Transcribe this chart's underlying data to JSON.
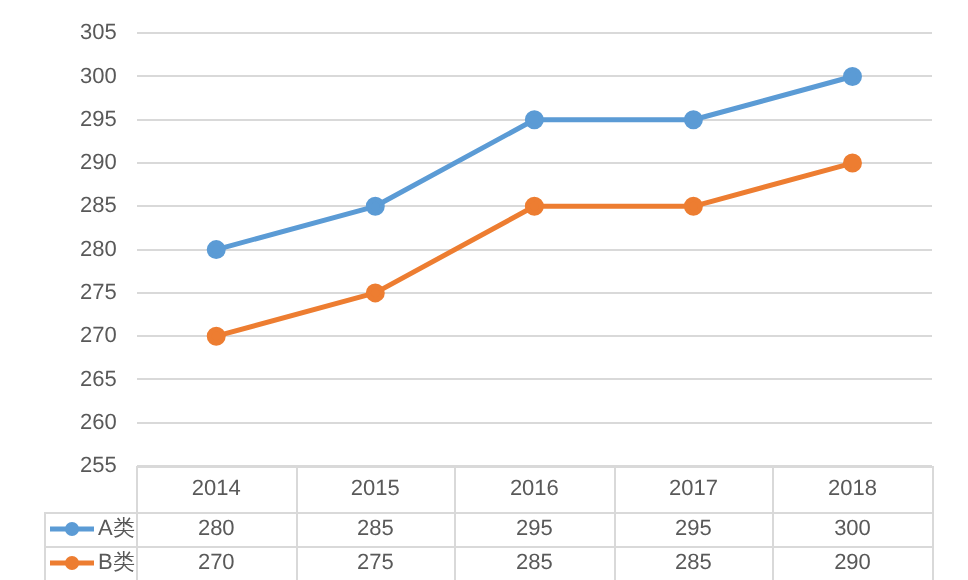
{
  "chart_data": {
    "type": "line",
    "categories": [
      "2014",
      "2015",
      "2016",
      "2017",
      "2018"
    ],
    "series": [
      {
        "name": "A类",
        "color": "#5b9bd5",
        "values": [
          280,
          285,
          295,
          295,
          300
        ]
      },
      {
        "name": "B类",
        "color": "#ed7d31",
        "values": [
          270,
          275,
          285,
          285,
          290
        ]
      }
    ],
    "ylim": [
      255,
      305
    ],
    "yticks": [
      255,
      260,
      265,
      270,
      275,
      280,
      285,
      290,
      295,
      300,
      305
    ],
    "grid": "y",
    "legend": "bottom",
    "marker": "circle",
    "line_style": "solid",
    "data_labels": true
  }
}
